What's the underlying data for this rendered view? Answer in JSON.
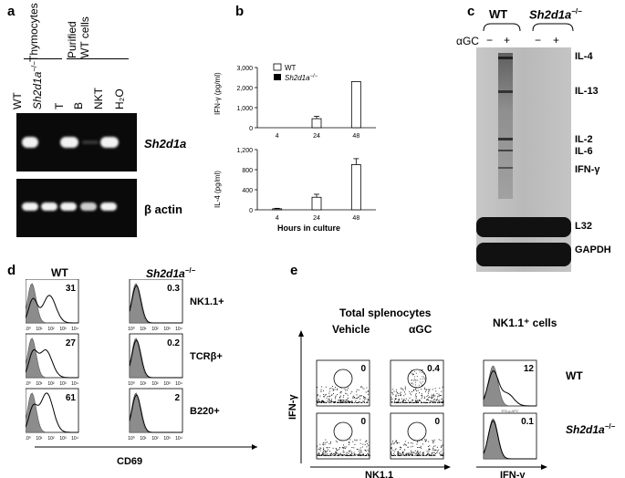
{
  "panels": {
    "a": "a",
    "b": "b",
    "c": "c",
    "d": "d",
    "e": "e"
  },
  "panel_a": {
    "group_thymocytes": "Thymocytes",
    "group_purified_1": "Purified",
    "group_purified_2": "WT cells",
    "lanes": [
      "WT",
      "Sh2d1a",
      "T",
      "B",
      "NKT",
      "H₂O"
    ],
    "lane_sup": "−/−",
    "gene_top": "Sh2d1a",
    "gene_bottom": "β actin",
    "top_band_intensity": [
      1,
      0,
      1,
      0.15,
      1,
      0
    ],
    "bottom_band_intensity": [
      1,
      1,
      1,
      0.9,
      1,
      0
    ]
  },
  "panel_b": {
    "legend_wt": "WT",
    "legend_ko": "Sh2d1a",
    "legend_ko_sup": "−/−",
    "top_ylabel": "IFN-γ (pg/ml)",
    "bottom_ylabel": "IL-4 (pg/ml)",
    "xlabel": "Hours in culture",
    "top_ticks": [
      "3,000",
      "2,000",
      "1,000",
      "0"
    ],
    "bottom_ticks": [
      "1,200",
      "800",
      "400",
      "0"
    ],
    "x_ticks": [
      "4",
      "24",
      "48"
    ]
  },
  "chart_data": [
    {
      "type": "bar",
      "categories": [
        "4",
        "24",
        "48"
      ],
      "ylabel": "IFN-γ (pg/ml)",
      "ylim": [
        0,
        3000
      ],
      "series": [
        {
          "name": "WT",
          "values": [
            0,
            450,
            2300
          ],
          "errors": [
            0,
            120,
            0
          ]
        },
        {
          "name": "Sh2d1a−/−",
          "values": [
            0,
            0,
            0
          ]
        }
      ]
    },
    {
      "type": "bar",
      "categories": [
        "4",
        "24",
        "48"
      ],
      "xlabel": "Hours in culture",
      "ylabel": "IL-4 (pg/ml)",
      "ylim": [
        0,
        1200
      ],
      "series": [
        {
          "name": "WT",
          "values": [
            20,
            250,
            900
          ],
          "errors": [
            10,
            60,
            120
          ]
        },
        {
          "name": "Sh2d1a−/−",
          "values": [
            0,
            0,
            0
          ]
        }
      ]
    }
  ],
  "panel_c": {
    "col_wt": "WT",
    "col_ko": "Sh2d1a",
    "col_ko_sup": "−/−",
    "agc": "αGC",
    "signs": [
      "−",
      "+",
      "−",
      "+"
    ],
    "bands": [
      "IL-4",
      "IL-13",
      "IL-2",
      "IL-6",
      "IFN-γ",
      "L32",
      "GAPDH"
    ]
  },
  "panel_d": {
    "col_wt": "WT",
    "col_ko": "Sh2d1a",
    "col_ko_sup": "−/−",
    "rows": [
      "NK1.1+",
      "TCRβ+",
      "B220+"
    ],
    "values_wt": [
      "31",
      "27",
      "61"
    ],
    "values_ko": [
      "0.3",
      "0.2",
      "2"
    ],
    "xlabel": "CD69",
    "tick_labels": [
      "10⁰",
      "10¹",
      "10²",
      "10³",
      "10⁴"
    ],
    "inner_axis": "CD69 FITC"
  },
  "panel_e": {
    "title": "Total splenocytes",
    "col_vehicle": "Vehicle",
    "col_agc": "αGC",
    "col_nk": "NK1.1⁺ cells",
    "row_wt": "WT",
    "row_ko": "Sh2d1a",
    "row_ko_sup": "−/−",
    "vals_top": [
      "0",
      "0.4",
      "12"
    ],
    "vals_bottom": [
      "0",
      "0",
      "0.1"
    ],
    "ylabel": "IFN-γ",
    "xlabel_dot": "NK1.1",
    "xlabel_hist": "IFN-γ",
    "inner_axis": "IFN-g APC"
  }
}
